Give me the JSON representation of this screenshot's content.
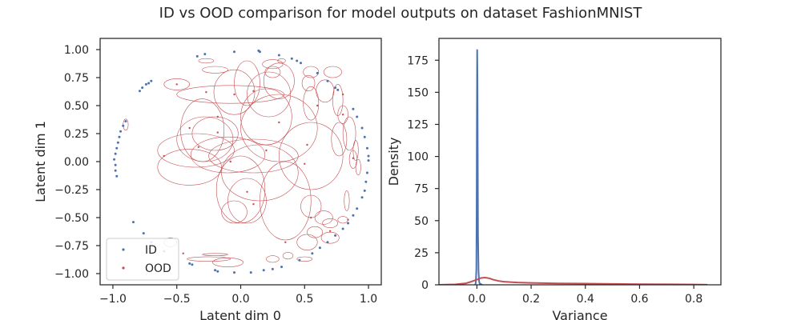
{
  "figure_title": "ID vs OOD comparison for model outputs on dataset FashionMNIST",
  "colors": {
    "id": "#4c72b0",
    "ood": "#c44e52",
    "axes": "#262626"
  },
  "chart_data": [
    {
      "type": "scatter",
      "xlabel": "Latent dim 0",
      "ylabel": "Latent dim 1",
      "xlim": [
        -1.1,
        1.1
      ],
      "ylim": [
        -1.1,
        1.1
      ],
      "xticks": [
        "−1.0",
        "−0.5",
        "0.0",
        "0.5",
        "1.0"
      ],
      "yticks": [
        "1.00",
        "0.75",
        "0.50",
        "0.25",
        "0.00",
        "−0.25",
        "−0.50",
        "−0.75",
        "−1.00"
      ],
      "legend": {
        "position": "lower-left",
        "entries": [
          "ID",
          "OOD"
        ]
      },
      "id_points": [
        [
          -0.98,
          -0.03
        ],
        [
          -0.99,
          0.02
        ],
        [
          -0.98,
          0.07
        ],
        [
          -0.97,
          0.12
        ],
        [
          -0.96,
          0.17
        ],
        [
          -0.95,
          0.22
        ],
        [
          -0.94,
          0.27
        ],
        [
          -0.92,
          0.32
        ],
        [
          -0.9,
          0.36
        ],
        [
          -0.98,
          -0.08
        ],
        [
          -0.97,
          -0.13
        ],
        [
          -0.79,
          0.63
        ],
        [
          -0.77,
          0.66
        ],
        [
          -0.74,
          0.69
        ],
        [
          -0.72,
          0.7
        ],
        [
          -0.7,
          0.72
        ],
        [
          -0.34,
          0.94
        ],
        [
          -0.28,
          0.96
        ],
        [
          -0.05,
          0.98
        ],
        [
          0.14,
          0.99
        ],
        [
          0.15,
          0.98
        ],
        [
          0.3,
          0.95
        ],
        [
          0.4,
          0.92
        ],
        [
          0.44,
          0.9
        ],
        [
          0.47,
          0.88
        ],
        [
          0.6,
          0.79
        ],
        [
          0.68,
          0.72
        ],
        [
          0.74,
          0.66
        ],
        [
          0.76,
          0.64
        ],
        [
          0.88,
          0.47
        ],
        [
          0.91,
          0.4
        ],
        [
          0.95,
          0.3
        ],
        [
          0.97,
          0.22
        ],
        [
          0.99,
          0.12
        ],
        [
          1.0,
          0.05
        ],
        [
          1.0,
          0.01
        ],
        [
          0.99,
          -0.1
        ],
        [
          0.98,
          -0.18
        ],
        [
          0.97,
          -0.26
        ],
        [
          0.95,
          -0.32
        ],
        [
          0.91,
          -0.42
        ],
        [
          0.88,
          -0.48
        ],
        [
          0.84,
          -0.55
        ],
        [
          0.8,
          -0.6
        ],
        [
          0.74,
          -0.66
        ],
        [
          0.68,
          -0.72
        ],
        [
          0.62,
          -0.77
        ],
        [
          0.56,
          -0.82
        ],
        [
          0.46,
          -0.88
        ],
        [
          0.32,
          -0.94
        ],
        [
          0.25,
          -0.96
        ],
        [
          0.18,
          -0.97
        ],
        [
          0.08,
          -0.99
        ],
        [
          -0.05,
          -0.99
        ],
        [
          -0.18,
          -0.98
        ],
        [
          -0.2,
          -0.97
        ],
        [
          -0.38,
          -0.92
        ],
        [
          -0.4,
          -0.91
        ],
        [
          -0.6,
          -0.8
        ],
        [
          -0.7,
          -0.72
        ],
        [
          -0.76,
          -0.64
        ],
        [
          -0.84,
          -0.54
        ]
      ],
      "ood_points": [
        [
          -0.5,
          0.69
        ],
        [
          -0.27,
          0.62
        ],
        [
          -0.05,
          0.6
        ],
        [
          0.1,
          0.63
        ],
        [
          -0.4,
          0.3
        ],
        [
          -0.18,
          0.26
        ],
        [
          -0.33,
          0.13
        ],
        [
          -0.08,
          0.0
        ],
        [
          0.5,
          -0.02
        ],
        [
          0.52,
          0.15
        ],
        [
          0.05,
          -0.27
        ],
        [
          0.1,
          -0.38
        ],
        [
          0.3,
          0.35
        ],
        [
          0.55,
          -0.5
        ],
        [
          0.7,
          -0.62
        ],
        [
          0.8,
          0.6
        ],
        [
          0.8,
          0.42
        ],
        [
          0.88,
          0.03
        ],
        [
          0.84,
          -0.52
        ],
        [
          -0.45,
          -0.82
        ],
        [
          -0.18,
          0.4
        ],
        [
          0.2,
          0.1
        ],
        [
          -0.6,
          0.05
        ],
        [
          0.35,
          -0.72
        ],
        [
          0.6,
          0.5
        ]
      ],
      "ood_ellipses": [
        [
          -0.5,
          0.69,
          0.1,
          0.05
        ],
        [
          -0.08,
          0.6,
          0.42,
          0.08
        ],
        [
          0.05,
          0.7,
          0.1,
          0.2
        ],
        [
          -0.05,
          0.62,
          0.16,
          0.2
        ],
        [
          0.22,
          0.6,
          0.17,
          0.2
        ],
        [
          0.3,
          0.72,
          0.12,
          0.16
        ],
        [
          -0.27,
          0.9,
          0.06,
          0.02
        ],
        [
          -0.2,
          0.82,
          0.1,
          0.03
        ],
        [
          0.25,
          0.87,
          0.08,
          0.04
        ],
        [
          0.25,
          0.8,
          0.06,
          0.05
        ],
        [
          0.32,
          0.9,
          0.03,
          0.02
        ],
        [
          0.55,
          0.8,
          0.06,
          0.05
        ],
        [
          0.53,
          0.7,
          0.05,
          0.07
        ],
        [
          0.55,
          0.52,
          0.06,
          0.15
        ],
        [
          0.66,
          0.63,
          0.07,
          0.1
        ],
        [
          0.72,
          0.8,
          0.07,
          0.05
        ],
        [
          0.76,
          0.55,
          0.04,
          0.14
        ],
        [
          0.8,
          0.42,
          0.04,
          0.08
        ],
        [
          0.85,
          0.25,
          0.05,
          0.15
        ],
        [
          0.77,
          0.2,
          0.06,
          0.15
        ],
        [
          0.9,
          0.1,
          0.02,
          0.09
        ],
        [
          0.88,
          0.02,
          0.03,
          0.08
        ],
        [
          0.92,
          -0.05,
          0.02,
          0.07
        ],
        [
          0.83,
          -0.35,
          0.02,
          0.09
        ],
        [
          0.8,
          -0.52,
          0.04,
          0.03
        ],
        [
          0.7,
          -0.55,
          0.06,
          0.04
        ],
        [
          0.7,
          -0.68,
          0.07,
          0.05
        ],
        [
          0.58,
          -0.63,
          0.06,
          0.05
        ],
        [
          0.52,
          -0.72,
          0.08,
          0.07
        ],
        [
          0.5,
          -0.87,
          0.06,
          0.02
        ],
        [
          0.37,
          -0.84,
          0.04,
          0.03
        ],
        [
          0.25,
          -0.87,
          0.05,
          0.03
        ],
        [
          -0.1,
          -0.9,
          0.12,
          0.04
        ],
        [
          -0.25,
          -0.87,
          0.17,
          0.02
        ],
        [
          -0.2,
          -0.83,
          0.1,
          0.01
        ],
        [
          -0.55,
          -0.72,
          0.05,
          0.04
        ],
        [
          -0.9,
          0.33,
          0.02,
          0.05
        ],
        [
          -0.3,
          0.28,
          0.17,
          0.28
        ],
        [
          -0.28,
          0.2,
          0.22,
          0.2
        ],
        [
          -0.35,
          0.1,
          0.3,
          0.15
        ],
        [
          -0.1,
          0.06,
          0.29,
          0.16
        ],
        [
          -0.2,
          0.25,
          0.18,
          0.15
        ],
        [
          0.0,
          -0.25,
          0.19,
          0.3
        ],
        [
          0.05,
          -0.35,
          0.15,
          0.2
        ],
        [
          0.15,
          -0.1,
          0.3,
          0.25
        ],
        [
          0.2,
          0.4,
          0.2,
          0.25
        ],
        [
          0.3,
          0.3,
          0.3,
          0.3
        ],
        [
          0.55,
          0.05,
          0.25,
          0.3
        ],
        [
          0.35,
          -0.35,
          0.2,
          0.35
        ],
        [
          0.1,
          0.05,
          0.35,
          0.15
        ],
        [
          -0.4,
          -0.05,
          0.25,
          0.16
        ],
        [
          -0.05,
          -0.45,
          0.1,
          0.1
        ],
        [
          0.55,
          -0.4,
          0.08,
          0.1
        ],
        [
          0.65,
          -0.5,
          0.07,
          0.06
        ]
      ]
    },
    {
      "type": "line",
      "xlabel": "Variance",
      "ylabel": "Density",
      "xlim": [
        -0.14,
        0.9
      ],
      "ylim": [
        0,
        192
      ],
      "xticks": [
        "0.0",
        "0.2",
        "0.4",
        "0.6",
        "0.8"
      ],
      "yticks": [
        "0",
        "25",
        "50",
        "75",
        "100",
        "125",
        "150",
        "175"
      ],
      "series": [
        {
          "color": "#4c72b0",
          "x": [
            -0.006,
            -0.004,
            -0.002,
            -0.001,
            0.0,
            0.001,
            0.002,
            0.003,
            0.004,
            0.006,
            0.008,
            0.01,
            0.02
          ],
          "y": [
            0,
            2,
            12,
            55,
            125,
            183,
            160,
            100,
            40,
            10,
            3,
            1,
            0
          ]
        },
        {
          "color": "#c44e52",
          "x": [
            -0.14,
            -0.08,
            -0.04,
            -0.02,
            0.0,
            0.015,
            0.03,
            0.045,
            0.06,
            0.08,
            0.1,
            0.15,
            0.2,
            0.3,
            0.4,
            0.5,
            0.6,
            0.7,
            0.8,
            0.85
          ],
          "y": [
            0,
            0.3,
            1.2,
            2.5,
            4.0,
            5.3,
            5.6,
            5.1,
            4.0,
            3.0,
            2.4,
            1.8,
            1.5,
            1.1,
            0.9,
            0.7,
            0.5,
            0.4,
            0.2,
            0.1
          ]
        }
      ]
    }
  ]
}
